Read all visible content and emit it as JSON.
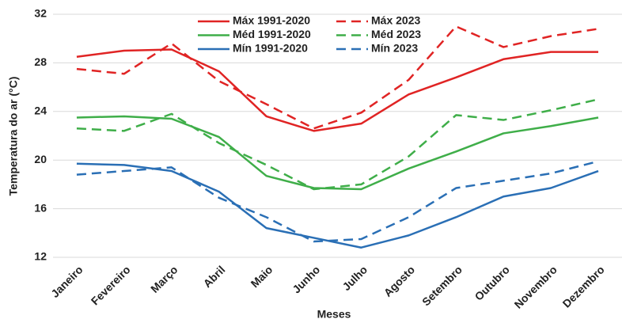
{
  "chart_data": {
    "type": "line",
    "x_label": "Meses",
    "y_label": "Temperatura do ar (°C)",
    "categories": [
      "Janeiro",
      "Fevereiro",
      "Março",
      "Abril",
      "Maio",
      "Junho",
      "Julho",
      "Agosto",
      "Setembro",
      "Outubro",
      "Novembro",
      "Dezembro"
    ],
    "ylim": [
      12,
      32
    ],
    "yticks": [
      12,
      16,
      20,
      24,
      28,
      32
    ],
    "grid": true,
    "legend_position": "top",
    "series": [
      {
        "name": "Máx 1991-2020",
        "color": "#e02424",
        "line_style": "solid",
        "values": [
          28.5,
          29.0,
          29.1,
          27.3,
          23.6,
          22.4,
          23.0,
          25.4,
          26.8,
          28.3,
          28.9,
          28.9
        ]
      },
      {
        "name": "Máx 2023",
        "color": "#e02424",
        "line_style": "dashed",
        "values": [
          27.5,
          27.1,
          29.6,
          26.5,
          24.6,
          22.6,
          23.9,
          26.6,
          31.0,
          29.3,
          30.2,
          30.8
        ]
      },
      {
        "name": "Méd 1991-2020",
        "color": "#3fae49",
        "line_style": "solid",
        "values": [
          23.5,
          23.6,
          23.4,
          21.9,
          18.7,
          17.7,
          17.6,
          19.3,
          20.7,
          22.2,
          22.8,
          23.5
        ]
      },
      {
        "name": "Méd 2023",
        "color": "#3fae49",
        "line_style": "dashed",
        "values": [
          22.6,
          22.4,
          23.8,
          21.4,
          19.6,
          17.6,
          18.0,
          20.3,
          23.7,
          23.3,
          24.1,
          25.0
        ]
      },
      {
        "name": "Mín 1991-2020",
        "color": "#2a6fb5",
        "line_style": "solid",
        "values": [
          19.7,
          19.6,
          19.1,
          17.4,
          14.4,
          13.6,
          12.8,
          13.8,
          15.3,
          17.0,
          17.7,
          19.1
        ]
      },
      {
        "name": "Mín 2023",
        "color": "#2a6fb5",
        "line_style": "dashed",
        "values": [
          18.8,
          19.1,
          19.4,
          16.9,
          15.3,
          13.3,
          13.5,
          15.3,
          17.7,
          18.3,
          18.9,
          19.9
        ]
      }
    ]
  }
}
